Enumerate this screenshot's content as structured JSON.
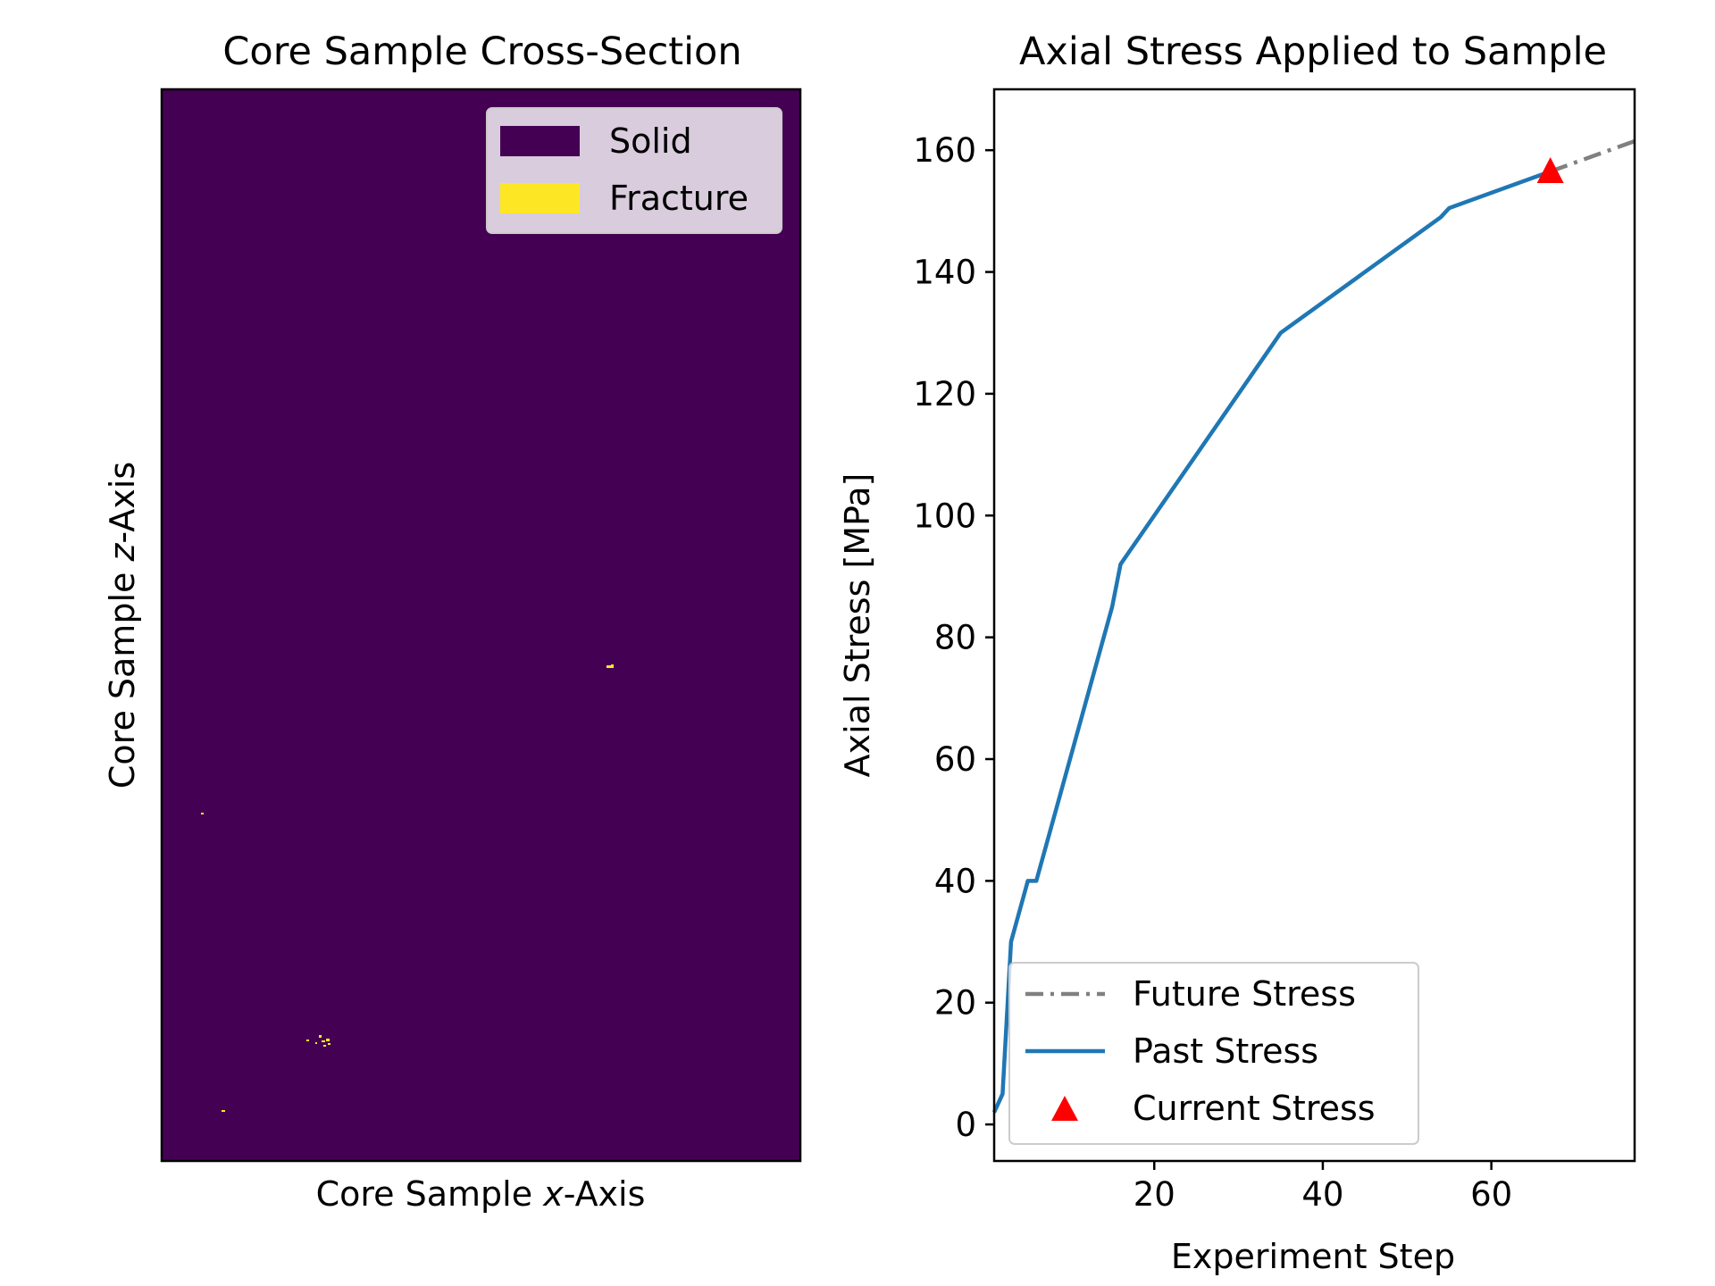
{
  "chart_data": [
    {
      "type": "heatmap",
      "title": "Core Sample Cross-Section",
      "xlabel_pre": "Core Sample ",
      "xlabel_var": "x",
      "xlabel_post": "-Axis",
      "ylabel_pre": "Core Sample ",
      "ylabel_var": "z",
      "ylabel_post": "-Axis",
      "colors": {
        "solid": "#440154",
        "fracture": "#fde725"
      },
      "legend": {
        "placement": "top-right",
        "entries": [
          "Solid",
          "Fracture"
        ]
      },
      "fracture_marks_note": "sparse small fracture specks"
    },
    {
      "type": "line",
      "title": "Axial Stress Applied to Sample",
      "xlabel": "Experiment Step",
      "ylabel": "Axial Stress [MPa]",
      "xlim": [
        1,
        77
      ],
      "ylim": [
        -6,
        170
      ],
      "xticks": [
        20,
        40,
        60
      ],
      "yticks": [
        0,
        20,
        40,
        60,
        80,
        100,
        120,
        140,
        160
      ],
      "legend": {
        "placement": "bottom-left"
      },
      "series": [
        {
          "name": "Future Stress",
          "color": "#808080",
          "style": "dashdot",
          "x": [
            67,
            77
          ],
          "y": [
            156.5,
            161.5
          ]
        },
        {
          "name": "Past Stress",
          "color": "#1f77b4",
          "style": "solid",
          "x": [
            1,
            2,
            3,
            5,
            6,
            15,
            16,
            35,
            54,
            55,
            67
          ],
          "y": [
            2,
            5,
            30,
            40,
            40,
            85,
            92,
            130,
            149,
            150.5,
            156.5
          ]
        },
        {
          "name": "Current Stress",
          "color": "#ff0000",
          "style": "marker-triangle",
          "x": [
            67
          ],
          "y": [
            156.5
          ]
        }
      ]
    }
  ]
}
